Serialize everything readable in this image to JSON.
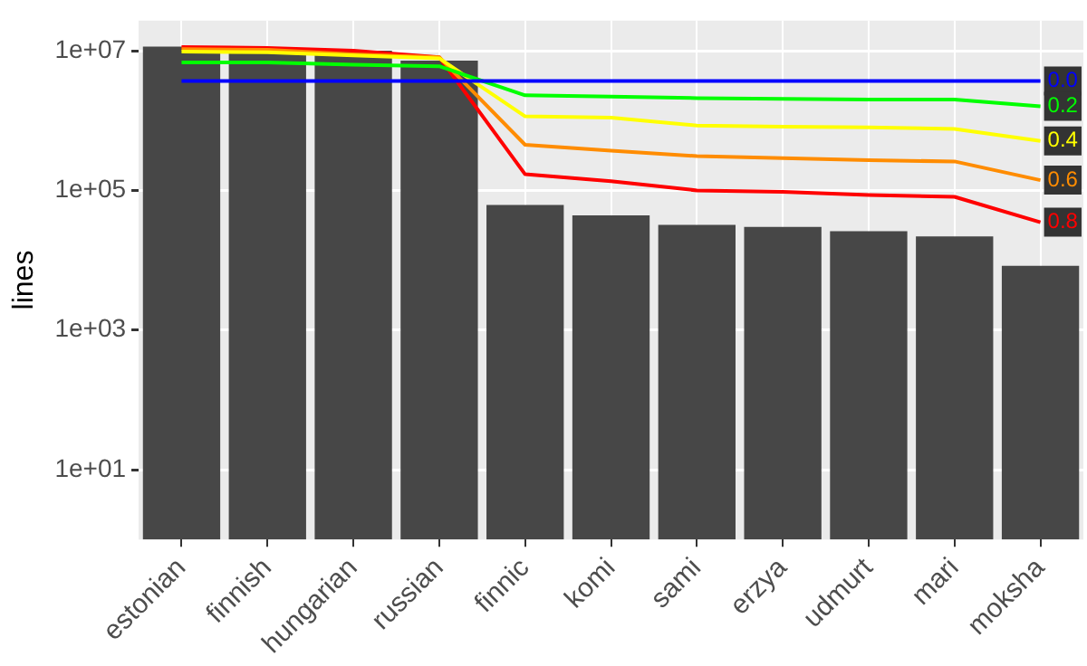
{
  "chart_data": {
    "type": "bar",
    "ylabel": "lines",
    "log": "y",
    "grid": true,
    "legend": false,
    "categories": [
      "estonian",
      "finnish",
      "hungarian",
      "russian",
      "finnic",
      "komi",
      "sami",
      "erzya",
      "udmurt",
      "mari",
      "moksha"
    ],
    "ylim": [
      1,
      27000000
    ],
    "yticks": [
      {
        "value": 10,
        "label": "1e+01"
      },
      {
        "value": 1000,
        "label": "1e+03"
      },
      {
        "value": 100000,
        "label": "1e+05"
      },
      {
        "value": 10000000,
        "label": "1e+07"
      }
    ],
    "series": [
      {
        "color": "#474747",
        "values": [
          11500000,
          10000000,
          10000000,
          7200000,
          62000,
          44000,
          32000,
          30000,
          26000,
          22000,
          8300
        ]
      },
      {
        "type": "line",
        "name": "0.0",
        "color": "#0000ff",
        "values": [
          3700000,
          3700000,
          3700000,
          3700000,
          3700000,
          3700000,
          3700000,
          3700000,
          3700000,
          3700000,
          3700000
        ]
      },
      {
        "type": "line",
        "name": "0.2",
        "color": "#00ff00",
        "values": [
          6800000,
          6800000,
          6300000,
          6000000,
          2300000,
          2200000,
          2100000,
          2050000,
          2000000,
          2000000,
          1600000
        ]
      },
      {
        "type": "line",
        "name": "0.4",
        "color": "#ffff00",
        "values": [
          9700000,
          9500000,
          8600000,
          7800000,
          1150000,
          1100000,
          850000,
          820000,
          800000,
          760000,
          510000
        ]
      },
      {
        "type": "line",
        "name": "0.6",
        "color": "#ff8c00",
        "values": [
          10600000,
          10300000,
          8900000,
          8100000,
          450000,
          370000,
          310000,
          290000,
          270000,
          260000,
          140000
        ]
      },
      {
        "type": "line",
        "name": "0.8",
        "color": "#ff0000",
        "values": [
          11300000,
          11000000,
          10000000,
          8100000,
          170000,
          135000,
          100000,
          95000,
          86000,
          81000,
          35000
        ]
      }
    ]
  }
}
